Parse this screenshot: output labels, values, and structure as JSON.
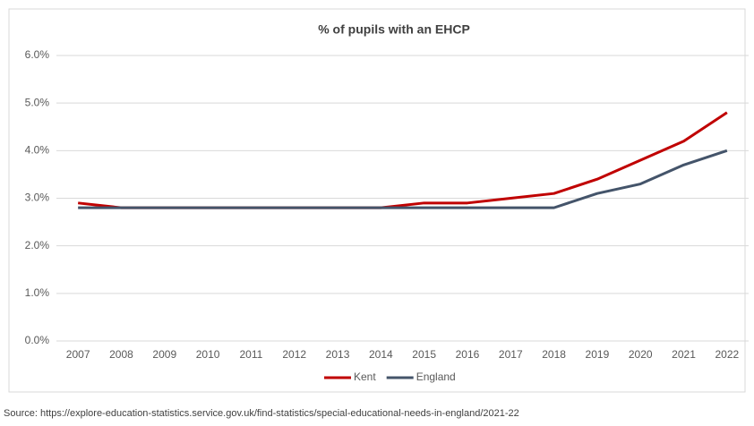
{
  "chart_data": {
    "type": "line",
    "title": "% of pupils with an EHCP",
    "categories": [
      "2007",
      "2008",
      "2009",
      "2010",
      "2011",
      "2012",
      "2013",
      "2014",
      "2015",
      "2016",
      "2017",
      "2018",
      "2019",
      "2020",
      "2021",
      "2022"
    ],
    "series": [
      {
        "name": "Kent",
        "color": "#c00000",
        "values": [
          2.9,
          2.8,
          2.8,
          2.8,
          2.8,
          2.8,
          2.8,
          2.8,
          2.9,
          2.9,
          3.0,
          3.1,
          3.4,
          3.8,
          4.2,
          4.8
        ]
      },
      {
        "name": "England",
        "color": "#44546a",
        "values": [
          2.8,
          2.8,
          2.8,
          2.8,
          2.8,
          2.8,
          2.8,
          2.8,
          2.8,
          2.8,
          2.8,
          2.8,
          3.1,
          3.3,
          3.7,
          4.0
        ]
      }
    ],
    "ylim": [
      0,
      6
    ],
    "yticks": [
      {
        "value": 0,
        "label": "0.0%"
      },
      {
        "value": 1,
        "label": "1.0%"
      },
      {
        "value": 2,
        "label": "2.0%"
      },
      {
        "value": 3,
        "label": "3.0%"
      },
      {
        "value": 4,
        "label": "4.0%"
      },
      {
        "value": 5,
        "label": "5.0%"
      },
      {
        "value": 6,
        "label": "6.0%"
      }
    ],
    "grid": true,
    "legend": "bottom",
    "source": "Source: https://explore-education-statistics.service.gov.uk/find-statistics/special-educational-needs-in-england/2021-22"
  }
}
